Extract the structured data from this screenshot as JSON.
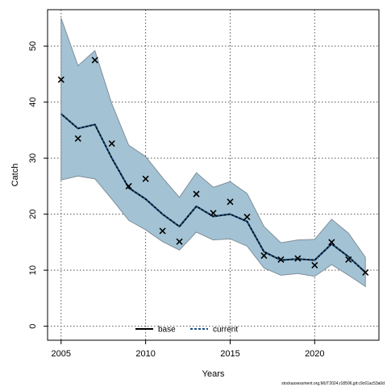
{
  "chart_data": {
    "type": "line",
    "xlabel": "Years",
    "ylabel": "Catch",
    "xlim": [
      2004.2,
      2023.8
    ],
    "ylim": [
      -2.5,
      56.5
    ],
    "x_ticks": [
      2005,
      2010,
      2015,
      2020
    ],
    "y_ticks": [
      0,
      10,
      20,
      30,
      40,
      50
    ],
    "grid": true,
    "legend_position": "bottom-center",
    "x": [
      2005,
      2006,
      2007,
      2008,
      2009,
      2010,
      2011,
      2012,
      2013,
      2014,
      2015,
      2016,
      2017,
      2018,
      2019,
      2020,
      2021,
      2022,
      2023
    ],
    "observed": [
      44.0,
      33.5,
      47.5,
      32.6,
      25.0,
      26.3,
      17.0,
      15.1,
      23.6,
      20.2,
      22.2,
      19.5,
      12.6,
      11.9,
      12.1,
      10.9,
      15.0,
      11.9,
      9.6
    ],
    "series": [
      {
        "name": "base",
        "color": "#000000",
        "values": [
          37.9,
          35.3,
          36.0,
          30.0,
          24.7,
          22.7,
          20.0,
          17.8,
          21.4,
          19.6,
          20.0,
          18.7,
          13.3,
          11.8,
          12.0,
          11.8,
          14.7,
          12.4,
          9.6
        ]
      },
      {
        "name": "current",
        "color": "#1a4e80",
        "values": [
          37.9,
          35.3,
          36.0,
          30.0,
          24.7,
          22.7,
          20.0,
          17.8,
          21.4,
          19.6,
          20.0,
          18.7,
          13.3,
          11.8,
          12.0,
          11.8,
          14.7,
          12.4,
          9.6
        ]
      }
    ],
    "band": {
      "lower": [
        26.1,
        26.8,
        26.3,
        22.7,
        18.9,
        17.2,
        15.1,
        13.6,
        16.8,
        15.4,
        15.6,
        14.3,
        10.4,
        9.1,
        9.4,
        8.9,
        11.0,
        9.1,
        7.1
      ],
      "upper": [
        55.0,
        46.5,
        49.2,
        39.7,
        32.3,
        30.3,
        26.5,
        23.0,
        27.4,
        24.8,
        25.8,
        23.7,
        17.8,
        14.9,
        15.4,
        15.5,
        19.1,
        16.6,
        12.3
      ],
      "fill": "#a3c3d4",
      "stroke": "#7f8e99"
    },
    "footnote": "stockassessment.org,MUT2024,r18506,git:c9c61ac53a0d"
  }
}
